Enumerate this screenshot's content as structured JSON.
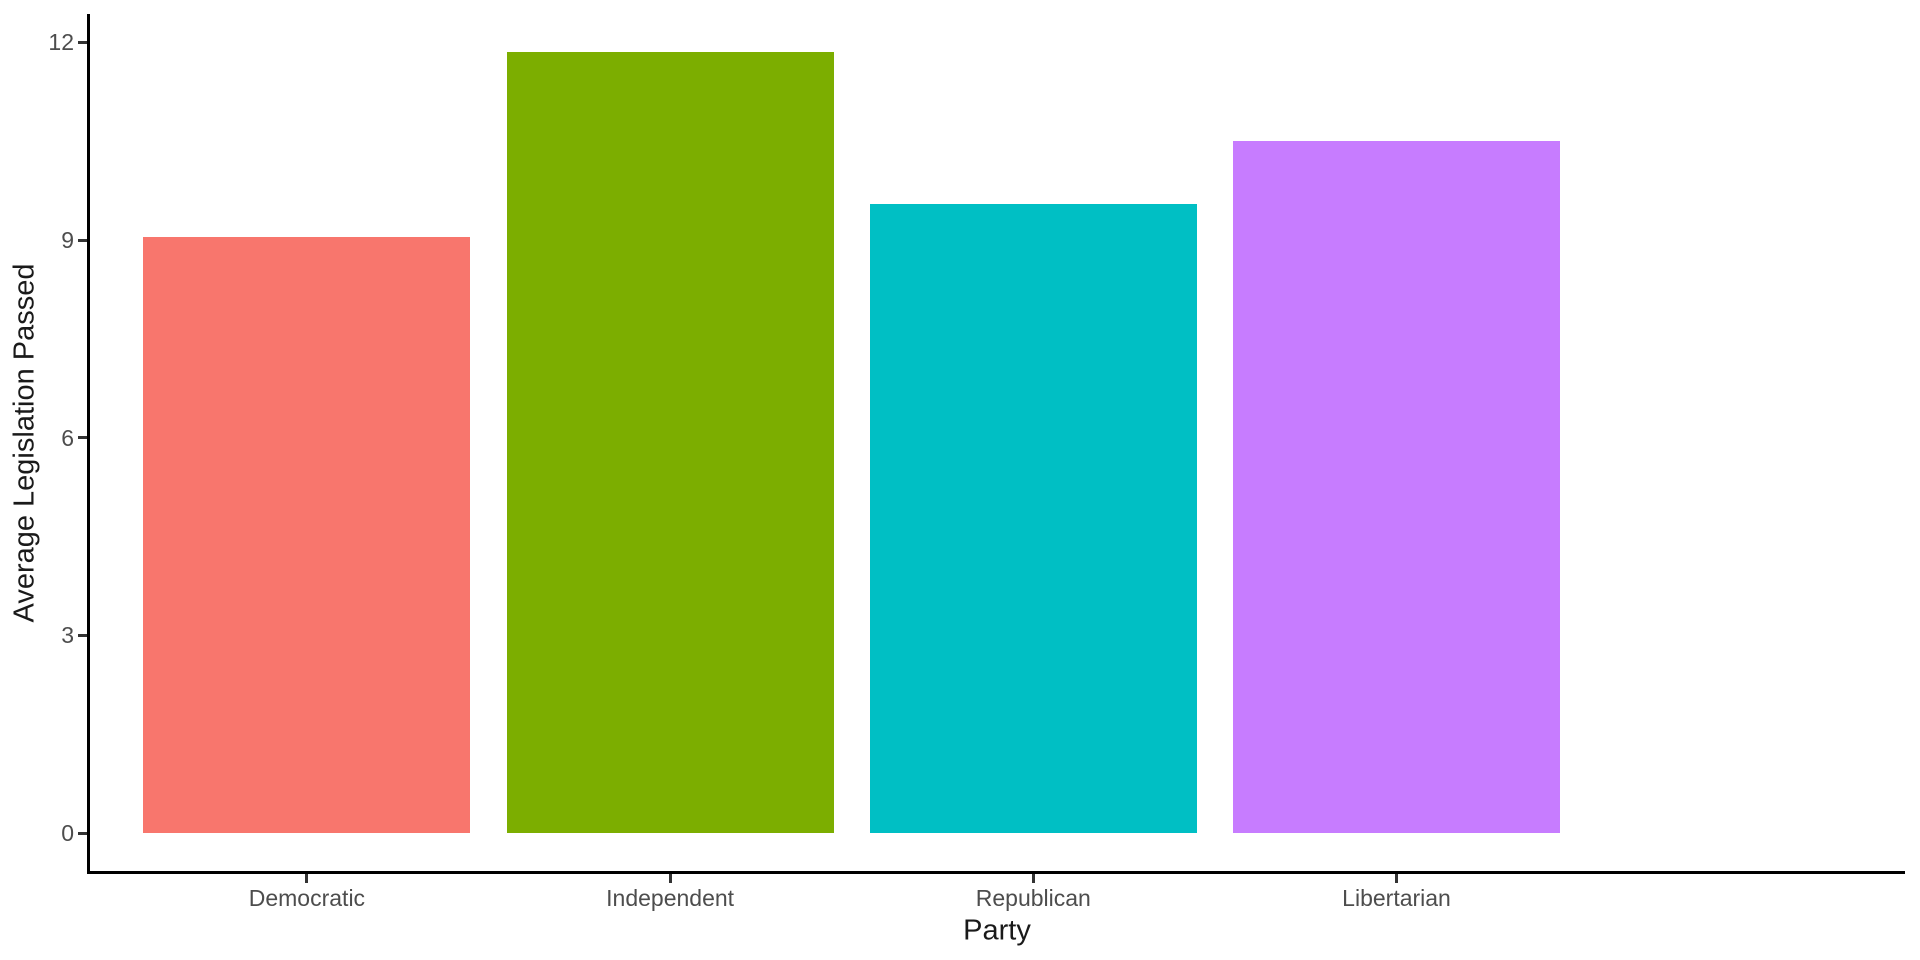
{
  "chart_data": {
    "type": "bar",
    "title": "",
    "xlabel": "Party",
    "ylabel": "Average Legislation Passed",
    "categories": [
      "Democratic",
      "Independent",
      "Republican",
      "Libertarian"
    ],
    "values": [
      9.05,
      11.85,
      9.55,
      10.5
    ],
    "bar_colors": [
      "#F8766D",
      "#7CAE00",
      "#00BFC4",
      "#C77CFF"
    ],
    "yticks": [
      0,
      3,
      6,
      9,
      12
    ],
    "ylim": [
      -0.59,
      12.43
    ],
    "bar_rel_width": 0.9,
    "x_expand_slots": 0.6,
    "grid": false,
    "legend": false,
    "background": "#FFFFFF",
    "axis_line_color": "#000000",
    "tick_mark_color": "#333333",
    "tick_label_color": "#4D4D4D",
    "axis_title_color": "#1a1a1a"
  }
}
